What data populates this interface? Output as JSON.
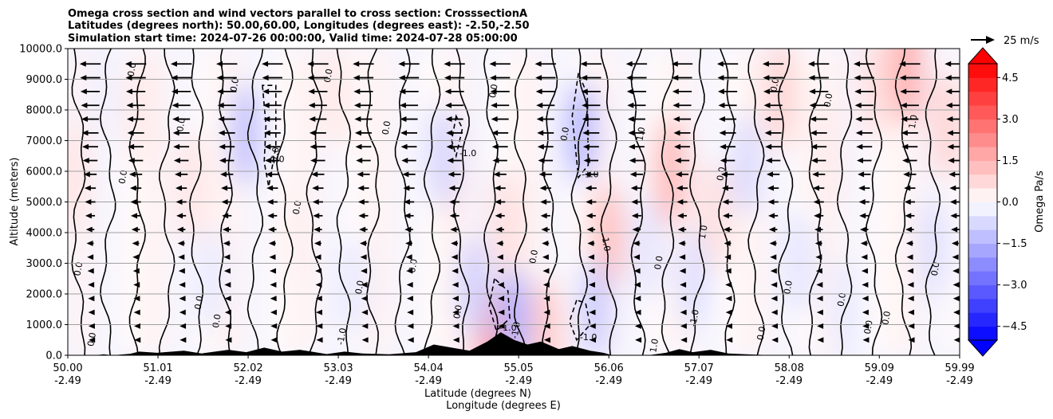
{
  "chart_data": {
    "type": "contour",
    "title_lines": [
      "Omega cross section and wind vectors parallel to cross section: CrosssectionA",
      "Latitudes (degrees north): 50.00,60.00, Longitudes (degrees east): -2.50,-2.50",
      "Simulation start time: 2024-07-26 00:00:00, Valid time: 2024-07-28 05:00:00"
    ],
    "ylabel": "Altitude (meters)",
    "xlabel_line1": "Latitude (degrees N)",
    "xlabel_line2": "Longitude (degrees E)",
    "ylim": [
      0,
      10000
    ],
    "yticks": [
      "0.0",
      "1000.0",
      "2000.0",
      "3000.0",
      "4000.0",
      "5000.0",
      "6000.0",
      "7000.0",
      "8000.0",
      "9000.0",
      "10000.0"
    ],
    "xlim": [
      50.0,
      59.99
    ],
    "xticks": [
      {
        "lat": "50.00",
        "lon": "-2.49"
      },
      {
        "lat": "51.01",
        "lon": "-2.49"
      },
      {
        "lat": "52.02",
        "lon": "-2.49"
      },
      {
        "lat": "53.03",
        "lon": "-2.49"
      },
      {
        "lat": "54.04",
        "lon": "-2.49"
      },
      {
        "lat": "55.05",
        "lon": "-2.49"
      },
      {
        "lat": "56.06",
        "lon": "-2.49"
      },
      {
        "lat": "57.07",
        "lon": "-2.49"
      },
      {
        "lat": "58.08",
        "lon": "-2.49"
      },
      {
        "lat": "59.09",
        "lon": "-2.49"
      },
      {
        "lat": "59.99",
        "lon": "-2.49"
      }
    ],
    "grid": "horizontal",
    "colorbar": {
      "label": "Omega Pa/s",
      "range": [
        -5.0,
        5.0
      ],
      "levels": 20,
      "ticks": [
        "4.5",
        "3.0",
        "1.5",
        "0.0",
        "−1.5",
        "−3.0",
        "−4.5"
      ],
      "tick_values": [
        4.5,
        3.0,
        1.5,
        0.0,
        -1.5,
        -3.0,
        -4.5
      ],
      "extend": "both"
    },
    "quiver_key": {
      "label": "25 m/s",
      "speed": 25
    },
    "contour_levels": [
      -1.0,
      0.0,
      1.0
    ],
    "contour_labels": [
      "0.0",
      "-1.0",
      "1.0"
    ],
    "positive_zones": [
      {
        "lat": 50.05,
        "alt": 5800,
        "omega": 0.5
      },
      {
        "lat": 50.8,
        "alt": 8000,
        "omega": 0.4
      },
      {
        "lat": 51.4,
        "alt": 5500,
        "omega": 0.5
      },
      {
        "lat": 52.6,
        "alt": 4000,
        "omega": 0.3
      },
      {
        "lat": 53.0,
        "alt": 8500,
        "omega": 0.4
      },
      {
        "lat": 54.3,
        "alt": 6000,
        "omega": 0.5
      },
      {
        "lat": 54.9,
        "alt": 4200,
        "omega": 0.6
      },
      {
        "lat": 54.75,
        "alt": 400,
        "omega": 1.8
      },
      {
        "lat": 55.35,
        "alt": 700,
        "omega": 1.0
      },
      {
        "lat": 56.05,
        "alt": 3800,
        "omega": 1.2
      },
      {
        "lat": 56.75,
        "alt": 6000,
        "omega": 1.3
      },
      {
        "lat": 57.25,
        "alt": 4500,
        "omega": 0.6
      },
      {
        "lat": 58.0,
        "alt": 8500,
        "omega": 0.8
      },
      {
        "lat": 59.05,
        "alt": 8800,
        "omega": 0.6
      },
      {
        "lat": 59.4,
        "alt": 9300,
        "omega": 1.5
      },
      {
        "lat": 59.85,
        "alt": 7500,
        "omega": 0.8
      },
      {
        "lat": 58.5,
        "alt": 6500,
        "omega": 0.4
      }
    ],
    "negative_zones": [
      {
        "lat": 50.4,
        "alt": 8500,
        "omega": -0.3
      },
      {
        "lat": 52.0,
        "alt": 7200,
        "omega": -1.2
      },
      {
        "lat": 53.2,
        "alt": 2200,
        "omega": -0.4
      },
      {
        "lat": 54.2,
        "alt": 6500,
        "omega": -0.8
      },
      {
        "lat": 54.55,
        "alt": 2200,
        "omega": -0.9
      },
      {
        "lat": 55.0,
        "alt": 1200,
        "omega": -1.5
      },
      {
        "lat": 55.75,
        "alt": 7300,
        "omega": -1.4
      },
      {
        "lat": 55.9,
        "alt": 1500,
        "omega": -1.0
      },
      {
        "lat": 56.5,
        "alt": 3500,
        "omega": -0.5
      },
      {
        "lat": 57.0,
        "alt": 2500,
        "omega": -0.6
      },
      {
        "lat": 57.6,
        "alt": 6200,
        "omega": -0.7
      },
      {
        "lat": 58.2,
        "alt": 3000,
        "omega": -0.5
      },
      {
        "lat": 58.7,
        "alt": 1500,
        "omega": -0.4
      },
      {
        "lat": 59.7,
        "alt": 3500,
        "omega": -0.6
      },
      {
        "lat": 51.6,
        "alt": 2500,
        "omega": -0.4
      }
    ],
    "dashed_contours": [
      {
        "label": "-1.0",
        "points": [
          [
            52.18,
            8800
          ],
          [
            52.22,
            7500
          ],
          [
            52.2,
            6300
          ],
          [
            52.25,
            5500
          ],
          [
            52.33,
            6800
          ],
          [
            52.33,
            8800
          ],
          [
            52.18,
            8800
          ]
        ]
      },
      {
        "label": "-1.0",
        "points": [
          [
            55.72,
            9200
          ],
          [
            55.65,
            7800
          ],
          [
            55.72,
            5800
          ],
          [
            55.83,
            6200
          ],
          [
            55.82,
            8500
          ],
          [
            55.72,
            9200
          ]
        ]
      },
      {
        "label": "-1.0",
        "points": [
          [
            54.35,
            7800
          ],
          [
            54.3,
            7000
          ],
          [
            54.35,
            6500
          ],
          [
            54.42,
            7400
          ],
          [
            54.35,
            7800
          ]
        ]
      },
      {
        "label": "-1.0",
        "points": [
          [
            54.78,
            2500
          ],
          [
            54.72,
            1600
          ],
          [
            54.8,
            800
          ],
          [
            54.95,
            1200
          ],
          [
            54.93,
            2100
          ],
          [
            54.78,
            2500
          ]
        ]
      },
      {
        "label": "-1.0",
        "points": [
          [
            55.7,
            1800
          ],
          [
            55.62,
            1100
          ],
          [
            55.7,
            500
          ],
          [
            55.85,
            1000
          ],
          [
            55.8,
            1700
          ],
          [
            55.7,
            1800
          ]
        ]
      }
    ],
    "terrain": [
      [
        50.0,
        0
      ],
      [
        50.3,
        0
      ],
      [
        50.4,
        30
      ],
      [
        50.5,
        0
      ],
      [
        50.7,
        50
      ],
      [
        50.8,
        120
      ],
      [
        51.0,
        80
      ],
      [
        51.3,
        150
      ],
      [
        51.5,
        60
      ],
      [
        51.8,
        180
      ],
      [
        52.0,
        100
      ],
      [
        52.2,
        250
      ],
      [
        52.4,
        120
      ],
      [
        52.6,
        180
      ],
      [
        52.9,
        40
      ],
      [
        53.1,
        120
      ],
      [
        53.3,
        60
      ],
      [
        53.6,
        30
      ],
      [
        53.9,
        100
      ],
      [
        54.1,
        350
      ],
      [
        54.3,
        250
      ],
      [
        54.5,
        150
      ],
      [
        54.7,
        450
      ],
      [
        54.85,
        750
      ],
      [
        55.0,
        500
      ],
      [
        55.15,
        350
      ],
      [
        55.3,
        450
      ],
      [
        55.5,
        200
      ],
      [
        55.65,
        300
      ],
      [
        55.85,
        150
      ],
      [
        56.0,
        80
      ],
      [
        56.1,
        0
      ],
      [
        56.3,
        0
      ],
      [
        56.5,
        0
      ],
      [
        56.7,
        80
      ],
      [
        56.85,
        200
      ],
      [
        57.0,
        100
      ],
      [
        57.2,
        180
      ],
      [
        57.4,
        60
      ],
      [
        57.6,
        30
      ],
      [
        57.9,
        0
      ],
      [
        59.99,
        0
      ]
    ],
    "wind_u_profile": [
      {
        "alt": 9500,
        "u": -22
      },
      {
        "alt": 8500,
        "u": -20
      },
      {
        "alt": 7500,
        "u": -18
      },
      {
        "alt": 6500,
        "u": -16
      },
      {
        "alt": 5500,
        "u": -12
      },
      {
        "alt": 4500,
        "u": -10
      },
      {
        "alt": 3500,
        "u": -7
      },
      {
        "alt": 2500,
        "u": -5
      },
      {
        "alt": 1500,
        "u": -4
      },
      {
        "alt": 500,
        "u": -3
      }
    ]
  }
}
